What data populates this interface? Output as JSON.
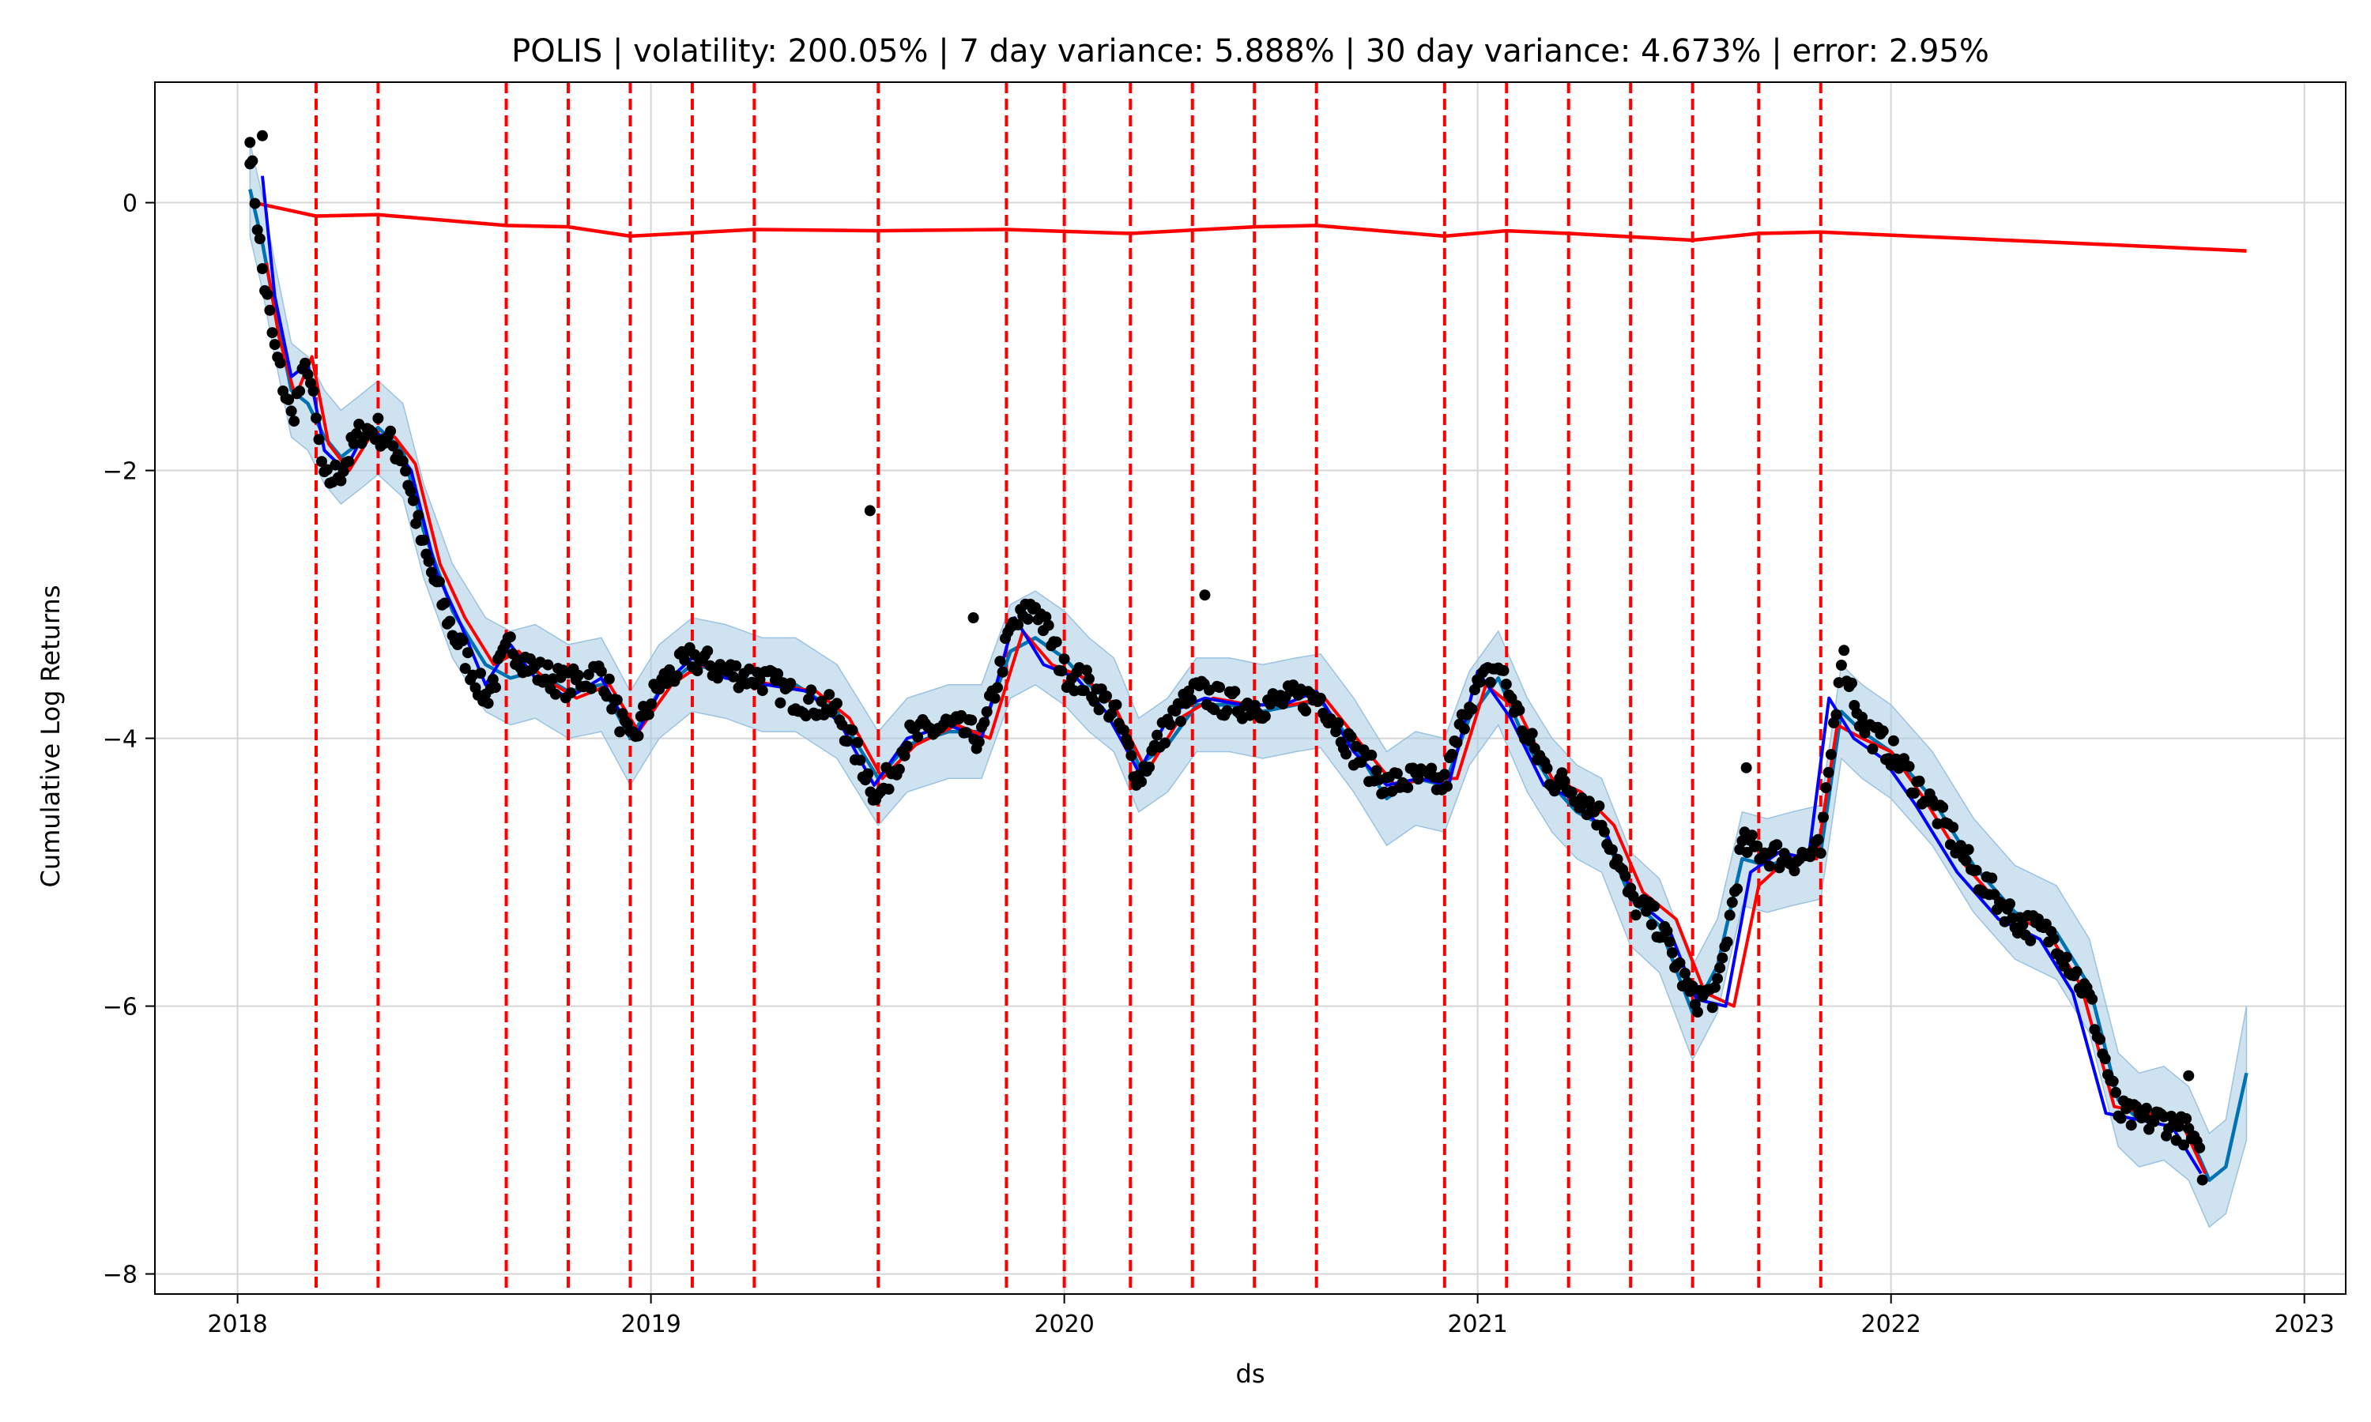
{
  "chart_data": {
    "type": "line",
    "title": "POLIS | volatility: 200.05% | 7 day variance: 5.888% | 30 day variance: 4.673% | error: 2.95%",
    "xlabel": "ds",
    "ylabel": "Cumulative Log Returns",
    "xlim": [
      2017.8,
      2023.1
    ],
    "ylim": [
      -8.15,
      0.9
    ],
    "x_ticks": [
      2018,
      2019,
      2020,
      2021,
      2022,
      2023
    ],
    "x_tick_labels": [
      "2018",
      "2019",
      "2020",
      "2021",
      "2022",
      "2023"
    ],
    "y_ticks": [
      0,
      -2,
      -4,
      -6,
      -8
    ],
    "y_tick_labels": [
      "0",
      "−2",
      "−4",
      "−6",
      "−8"
    ],
    "grid": true,
    "colors": {
      "observed": "#000000",
      "forecast": "#0072b2",
      "band": "#a6cbe3",
      "trend": "#ff0000",
      "changepoint": "#ff0000",
      "rolling_red": "#ff0000",
      "rolling_blue": "#0000ff"
    },
    "changepoints": [
      2018.19,
      2018.34,
      2018.65,
      2018.8,
      2018.95,
      2019.1,
      2019.25,
      2019.55,
      2019.86,
      2020.0,
      2020.16,
      2020.31,
      2020.46,
      2020.61,
      2020.92,
      2021.07,
      2021.22,
      2021.37,
      2021.52,
      2021.68,
      2021.83
    ],
    "series": [
      {
        "key": "trend",
        "x": [
          2018.04,
          2018.19,
          2018.34,
          2018.65,
          2018.8,
          2018.95,
          2019.25,
          2019.55,
          2019.86,
          2020.16,
          2020.46,
          2020.61,
          2020.92,
          2021.07,
          2021.22,
          2021.52,
          2021.68,
          2021.83,
          2022.2,
          2022.5,
          2022.86
        ],
        "y": [
          0.0,
          -0.1,
          -0.09,
          -0.17,
          -0.18,
          -0.25,
          -0.2,
          -0.21,
          -0.2,
          -0.23,
          -0.18,
          -0.17,
          -0.25,
          -0.21,
          -0.23,
          -0.28,
          -0.23,
          -0.22,
          -0.27,
          -0.31,
          -0.36
        ]
      },
      {
        "key": "forecast",
        "x": [
          2018.03,
          2018.06,
          2018.09,
          2018.13,
          2018.17,
          2018.21,
          2018.25,
          2018.3,
          2018.34,
          2018.4,
          2018.45,
          2018.52,
          2018.6,
          2018.66,
          2018.72,
          2018.8,
          2018.88,
          2018.95,
          2019.02,
          2019.1,
          2019.18,
          2019.27,
          2019.35,
          2019.45,
          2019.55,
          2019.62,
          2019.72,
          2019.8,
          2019.87,
          2019.93,
          2020.0,
          2020.06,
          2020.12,
          2020.18,
          2020.25,
          2020.32,
          2020.4,
          2020.48,
          2020.56,
          2020.62,
          2020.7,
          2020.78,
          2020.85,
          2020.92,
          2020.98,
          2021.05,
          2021.12,
          2021.18,
          2021.24,
          2021.3,
          2021.37,
          2021.44,
          2021.52,
          2021.58,
          2021.64,
          2021.7,
          2021.76,
          2021.83,
          2021.88,
          2021.93,
          2022.0,
          2022.1,
          2022.2,
          2022.3,
          2022.4,
          2022.48,
          2022.55,
          2022.6,
          2022.66,
          2022.72,
          2022.77,
          2022.81,
          2022.86
        ],
        "y": [
          0.1,
          -0.3,
          -0.8,
          -1.4,
          -1.5,
          -1.75,
          -1.9,
          -1.78,
          -1.68,
          -1.85,
          -2.45,
          -3.05,
          -3.45,
          -3.55,
          -3.5,
          -3.65,
          -3.6,
          -4.0,
          -3.65,
          -3.45,
          -3.5,
          -3.6,
          -3.6,
          -3.8,
          -4.3,
          -4.05,
          -3.95,
          -3.95,
          -3.35,
          -3.25,
          -3.4,
          -3.6,
          -3.75,
          -4.2,
          -4.05,
          -3.75,
          -3.75,
          -3.8,
          -3.75,
          -3.72,
          -4.05,
          -4.45,
          -4.3,
          -4.35,
          -3.85,
          -3.55,
          -4.05,
          -4.35,
          -4.55,
          -4.65,
          -5.2,
          -5.4,
          -6.05,
          -5.7,
          -4.9,
          -4.95,
          -4.9,
          -4.85,
          -3.8,
          -3.95,
          -4.1,
          -4.45,
          -4.95,
          -5.3,
          -5.45,
          -5.85,
          -6.7,
          -6.85,
          -6.8,
          -6.95,
          -7.3,
          -7.2,
          -6.5
        ]
      },
      {
        "key": "band_upper",
        "x": [
          2018.03,
          2018.06,
          2018.09,
          2018.13,
          2018.17,
          2018.21,
          2018.25,
          2018.3,
          2018.34,
          2018.4,
          2018.45,
          2018.52,
          2018.6,
          2018.66,
          2018.72,
          2018.8,
          2018.88,
          2018.95,
          2019.02,
          2019.1,
          2019.18,
          2019.27,
          2019.35,
          2019.45,
          2019.55,
          2019.62,
          2019.72,
          2019.8,
          2019.87,
          2019.93,
          2020.0,
          2020.06,
          2020.12,
          2020.18,
          2020.25,
          2020.32,
          2020.4,
          2020.48,
          2020.56,
          2020.62,
          2020.7,
          2020.78,
          2020.85,
          2020.92,
          2020.98,
          2021.05,
          2021.12,
          2021.18,
          2021.24,
          2021.3,
          2021.37,
          2021.44,
          2021.52,
          2021.58,
          2021.64,
          2021.7,
          2021.76,
          2021.83,
          2021.88,
          2021.93,
          2022.0,
          2022.1,
          2022.2,
          2022.3,
          2022.4,
          2022.48,
          2022.55,
          2022.6,
          2022.66,
          2022.72,
          2022.77,
          2022.81,
          2022.86
        ],
        "y": [
          0.45,
          0.05,
          -0.45,
          -1.05,
          -1.15,
          -1.4,
          -1.55,
          -1.43,
          -1.33,
          -1.5,
          -2.1,
          -2.7,
          -3.1,
          -3.2,
          -3.15,
          -3.3,
          -3.25,
          -3.65,
          -3.3,
          -3.1,
          -3.15,
          -3.25,
          -3.25,
          -3.45,
          -3.95,
          -3.7,
          -3.6,
          -3.6,
          -3.0,
          -2.9,
          -3.05,
          -3.25,
          -3.4,
          -3.85,
          -3.7,
          -3.4,
          -3.4,
          -3.45,
          -3.4,
          -3.37,
          -3.7,
          -4.1,
          -3.95,
          -4.0,
          -3.5,
          -3.2,
          -3.7,
          -4.0,
          -4.2,
          -4.3,
          -4.85,
          -5.05,
          -5.7,
          -5.35,
          -4.55,
          -4.6,
          -4.55,
          -4.5,
          -3.45,
          -3.6,
          -3.75,
          -4.1,
          -4.6,
          -4.95,
          -5.1,
          -5.5,
          -6.35,
          -6.5,
          -6.45,
          -6.6,
          -6.95,
          -6.85,
          -6.0
        ]
      },
      {
        "key": "band_lower",
        "x": [
          2018.03,
          2018.06,
          2018.09,
          2018.13,
          2018.17,
          2018.21,
          2018.25,
          2018.3,
          2018.34,
          2018.4,
          2018.45,
          2018.52,
          2018.6,
          2018.66,
          2018.72,
          2018.8,
          2018.88,
          2018.95,
          2019.02,
          2019.1,
          2019.18,
          2019.27,
          2019.35,
          2019.45,
          2019.55,
          2019.62,
          2019.72,
          2019.8,
          2019.87,
          2019.93,
          2020.0,
          2020.06,
          2020.12,
          2020.18,
          2020.25,
          2020.32,
          2020.4,
          2020.48,
          2020.56,
          2020.62,
          2020.7,
          2020.78,
          2020.85,
          2020.92,
          2020.98,
          2021.05,
          2021.12,
          2021.18,
          2021.24,
          2021.3,
          2021.37,
          2021.44,
          2021.52,
          2021.58,
          2021.64,
          2021.7,
          2021.76,
          2021.83,
          2021.88,
          2021.93,
          2022.0,
          2022.1,
          2022.2,
          2022.3,
          2022.4,
          2022.48,
          2022.55,
          2022.6,
          2022.66,
          2022.72,
          2022.77,
          2022.81,
          2022.86
        ],
        "y": [
          -0.25,
          -0.65,
          -1.15,
          -1.75,
          -1.85,
          -2.1,
          -2.25,
          -2.13,
          -2.03,
          -2.2,
          -2.8,
          -3.4,
          -3.8,
          -3.9,
          -3.85,
          -4.0,
          -3.95,
          -4.35,
          -4.0,
          -3.8,
          -3.85,
          -3.95,
          -3.95,
          -4.15,
          -4.65,
          -4.4,
          -4.3,
          -4.3,
          -3.7,
          -3.6,
          -3.75,
          -3.95,
          -4.1,
          -4.55,
          -4.4,
          -4.1,
          -4.1,
          -4.15,
          -4.1,
          -4.07,
          -4.4,
          -4.8,
          -4.65,
          -4.7,
          -4.2,
          -3.9,
          -4.4,
          -4.7,
          -4.9,
          -5.0,
          -5.55,
          -5.75,
          -6.4,
          -6.05,
          -5.25,
          -5.3,
          -5.25,
          -5.2,
          -4.15,
          -4.3,
          -4.45,
          -4.8,
          -5.3,
          -5.65,
          -5.8,
          -6.2,
          -7.05,
          -7.2,
          -7.15,
          -7.3,
          -7.65,
          -7.55,
          -7.0
        ]
      },
      {
        "key": "rolling_red",
        "x": [
          2018.07,
          2018.1,
          2018.14,
          2018.18,
          2018.22,
          2018.27,
          2018.32,
          2018.38,
          2018.43,
          2018.49,
          2018.55,
          2018.62,
          2018.68,
          2018.74,
          2018.82,
          2018.9,
          2018.97,
          2019.05,
          2019.12,
          2019.2,
          2019.3,
          2019.4,
          2019.48,
          2019.56,
          2019.64,
          2019.74,
          2019.82,
          2019.9,
          2019.97,
          2020.05,
          2020.12,
          2020.2,
          2020.28,
          2020.36,
          2020.45,
          2020.55,
          2020.63,
          2020.72,
          2020.8,
          2020.88,
          2020.95,
          2021.02,
          2021.1,
          2021.18,
          2021.25,
          2021.33,
          2021.4,
          2021.48,
          2021.55,
          2021.62,
          2021.68,
          2021.75,
          2021.82,
          2021.87,
          2021.93,
          2022.0,
          2022.08,
          2022.18,
          2022.28,
          2022.38,
          2022.46,
          2022.54,
          2022.62,
          2022.7,
          2022.76
        ],
        "y": [
          -0.45,
          -1.0,
          -1.45,
          -1.15,
          -1.8,
          -2.0,
          -1.75,
          -1.75,
          -1.95,
          -2.7,
          -3.1,
          -3.45,
          -3.35,
          -3.55,
          -3.7,
          -3.6,
          -3.95,
          -3.6,
          -3.45,
          -3.55,
          -3.6,
          -3.65,
          -3.85,
          -4.3,
          -4.05,
          -3.9,
          -4.0,
          -3.2,
          -3.45,
          -3.55,
          -3.75,
          -4.25,
          -3.85,
          -3.7,
          -3.75,
          -3.75,
          -3.7,
          -4.05,
          -4.35,
          -4.3,
          -4.3,
          -3.6,
          -3.8,
          -4.3,
          -4.4,
          -4.65,
          -5.15,
          -5.35,
          -5.9,
          -6.0,
          -5.1,
          -4.9,
          -4.9,
          -3.9,
          -4.0,
          -4.1,
          -4.45,
          -4.95,
          -5.3,
          -5.45,
          -5.85,
          -6.75,
          -6.8,
          -6.85,
          -7.25
        ]
      },
      {
        "key": "rolling_blue",
        "x": [
          2018.06,
          2018.09,
          2018.13,
          2018.17,
          2018.21,
          2018.26,
          2018.31,
          2018.36,
          2018.42,
          2018.48,
          2018.54,
          2018.6,
          2018.66,
          2018.72,
          2018.8,
          2018.88,
          2018.96,
          2019.03,
          2019.1,
          2019.18,
          2019.28,
          2019.38,
          2019.46,
          2019.54,
          2019.62,
          2019.72,
          2019.8,
          2019.88,
          2019.95,
          2020.03,
          2020.1,
          2020.18,
          2020.26,
          2020.34,
          2020.43,
          2020.53,
          2020.61,
          2020.7,
          2020.78,
          2020.86,
          2020.93,
          2021.0,
          2021.08,
          2021.16,
          2021.23,
          2021.31,
          2021.38,
          2021.46,
          2021.53,
          2021.6,
          2021.66,
          2021.73,
          2021.8,
          2021.85,
          2021.91,
          2021.98,
          2022.06,
          2022.16,
          2022.26,
          2022.36,
          2022.44,
          2022.52,
          2022.6,
          2022.68,
          2022.75
        ],
        "y": [
          0.2,
          -0.7,
          -1.3,
          -1.2,
          -1.85,
          -2.0,
          -1.7,
          -1.75,
          -2.0,
          -2.75,
          -3.15,
          -3.6,
          -3.3,
          -3.55,
          -3.7,
          -3.55,
          -4.0,
          -3.6,
          -3.4,
          -3.55,
          -3.6,
          -3.65,
          -3.9,
          -4.35,
          -4.0,
          -3.9,
          -4.0,
          -3.1,
          -3.45,
          -3.55,
          -3.8,
          -4.25,
          -3.8,
          -3.7,
          -3.75,
          -3.75,
          -3.65,
          -4.1,
          -4.35,
          -4.3,
          -4.35,
          -3.5,
          -3.85,
          -4.35,
          -4.45,
          -4.7,
          -5.2,
          -5.4,
          -5.95,
          -6.0,
          -5.0,
          -4.85,
          -4.9,
          -3.7,
          -4.0,
          -4.15,
          -4.5,
          -5.0,
          -5.35,
          -5.5,
          -5.9,
          -6.8,
          -6.85,
          -6.9,
          -7.25
        ]
      },
      {
        "key": "observed",
        "anchors_x": [
          2018.03,
          2018.06,
          2018.09,
          2018.13,
          2018.17,
          2018.21,
          2018.25,
          2018.3,
          2018.34,
          2018.4,
          2018.45,
          2018.52,
          2018.6,
          2018.66,
          2018.72,
          2018.8,
          2018.88,
          2018.95,
          2019.02,
          2019.1,
          2019.18,
          2019.27,
          2019.35,
          2019.45,
          2019.55,
          2019.62,
          2019.72,
          2019.8,
          2019.87,
          2019.93,
          2020.0,
          2020.06,
          2020.12,
          2020.18,
          2020.25,
          2020.32,
          2020.4,
          2020.48,
          2020.56,
          2020.62,
          2020.7,
          2020.78,
          2020.85,
          2020.92,
          2020.98,
          2021.05,
          2021.12,
          2021.18,
          2021.24,
          2021.3,
          2021.37,
          2021.44,
          2021.52,
          2021.58,
          2021.64,
          2021.7,
          2021.76,
          2021.83,
          2021.88,
          2021.93,
          2022.0,
          2022.1,
          2022.2,
          2022.3,
          2022.4,
          2022.48,
          2022.55,
          2022.6,
          2022.66,
          2022.72,
          2022.76
        ],
        "anchors_y": [
          0.4,
          -0.5,
          -1.1,
          -1.6,
          -1.2,
          -2.1,
          -2.0,
          -1.7,
          -1.7,
          -1.9,
          -2.6,
          -3.2,
          -3.7,
          -3.3,
          -3.5,
          -3.6,
          -3.5,
          -4.05,
          -3.6,
          -3.4,
          -3.5,
          -3.55,
          -3.7,
          -3.8,
          -4.45,
          -4.0,
          -3.9,
          -4.0,
          -3.2,
          -3.0,
          -3.5,
          -3.6,
          -3.8,
          -4.3,
          -3.9,
          -3.65,
          -3.75,
          -3.75,
          -3.7,
          -3.7,
          -4.1,
          -4.35,
          -4.3,
          -4.35,
          -3.7,
          -3.45,
          -4.0,
          -4.3,
          -4.4,
          -4.6,
          -5.2,
          -5.4,
          -5.95,
          -5.9,
          -4.8,
          -4.85,
          -4.9,
          -4.85,
          -3.35,
          -3.9,
          -4.1,
          -4.5,
          -5.0,
          -5.35,
          -5.5,
          -5.95,
          -6.8,
          -6.85,
          -6.85,
          -6.95,
          -7.25
        ],
        "outliers": [
          [
            2019.53,
            -2.3
          ],
          [
            2019.78,
            -3.1
          ],
          [
            2020.34,
            -2.93
          ],
          [
            2021.65,
            -4.22
          ],
          [
            2022.72,
            -6.52
          ],
          [
            2018.06,
            0.5
          ],
          [
            2018.03,
            0.45
          ]
        ]
      }
    ]
  }
}
